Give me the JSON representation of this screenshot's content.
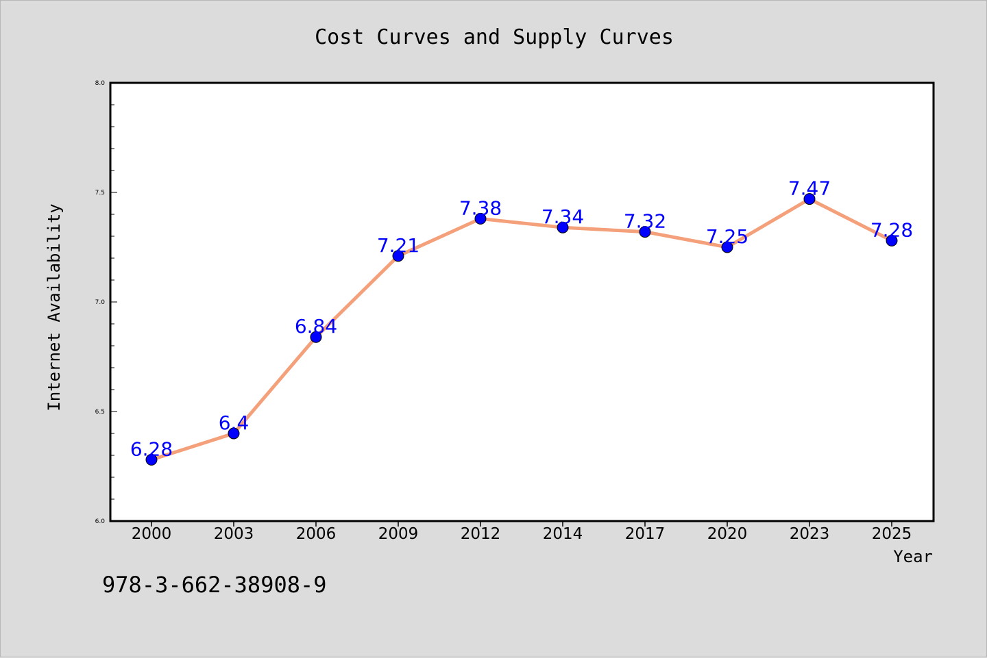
{
  "chart_data": {
    "type": "line",
    "title": "Cost Curves and Supply Curves",
    "xlabel": "Year",
    "ylabel": "Internet Availability",
    "categories": [
      "2000",
      "2003",
      "2006",
      "2009",
      "2012",
      "2014",
      "2017",
      "2020",
      "2023",
      "2025"
    ],
    "series": [
      {
        "values": [
          6.28,
          6.4,
          6.84,
          7.21,
          7.38,
          7.34,
          7.32,
          7.25,
          7.47,
          7.28
        ],
        "labels": [
          "6.28",
          "6.4",
          "6.84",
          "7.21",
          "7.38",
          "7.34",
          "7.32",
          "7.25",
          "7.47",
          "7.28"
        ],
        "line_color": "#f4a07a",
        "marker_color": "#0000ff",
        "label_color": "#0000ff"
      }
    ],
    "ylim": [
      6.0,
      8.0
    ],
    "yticks": [
      "6.0",
      "6.5",
      "7.0",
      "7.5",
      "8.0"
    ],
    "grid": false,
    "legend": "none"
  },
  "footer_text": "978-3-662-38908-9"
}
